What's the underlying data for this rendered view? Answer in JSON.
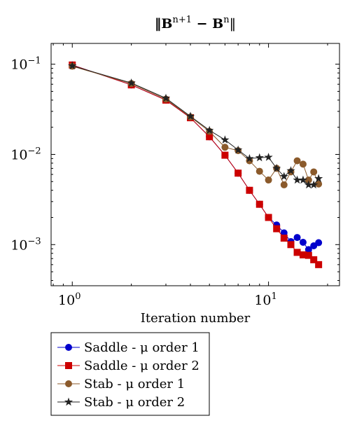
{
  "chart_data": {
    "type": "line",
    "title": "‖B^{n+1} − B^n‖",
    "xlabel": "Iteration number",
    "ylabel": "",
    "x_scale": "log",
    "y_scale": "log",
    "xlim": [
      0.78,
      23
    ],
    "ylim": [
      0.00035,
      0.17
    ],
    "x_ticks": [
      {
        "value": 1,
        "base": "10",
        "exp": "0"
      },
      {
        "value": 10,
        "base": "10",
        "exp": "1"
      }
    ],
    "y_ticks": [
      {
        "value": 0.1,
        "base": "10",
        "exp": "−1"
      },
      {
        "value": 0.01,
        "base": "10",
        "exp": "−2"
      },
      {
        "value": 0.001,
        "base": "10",
        "exp": "−3"
      }
    ],
    "grid": false,
    "legend_position": "below",
    "series": [
      {
        "name": "Saddle - μ order 1",
        "color": "#0000cc",
        "marker": "circle",
        "x": [
          1,
          2,
          3,
          4,
          5,
          6,
          7,
          8,
          9,
          10,
          11,
          12,
          13,
          14,
          15,
          16,
          17,
          18
        ],
        "y": [
          0.098,
          0.059,
          0.04,
          0.0255,
          0.0157,
          0.0098,
          0.0062,
          0.004,
          0.0028,
          0.002,
          0.00165,
          0.00135,
          0.00108,
          0.0012,
          0.00106,
          0.00088,
          0.00097,
          0.00105
        ]
      },
      {
        "name": "Saddle - μ order 2",
        "color": "#cc0000",
        "marker": "square",
        "x": [
          1,
          2,
          3,
          4,
          5,
          6,
          7,
          8,
          9,
          10,
          11,
          12,
          13,
          14,
          15,
          16,
          17,
          18
        ],
        "y": [
          0.098,
          0.059,
          0.04,
          0.0255,
          0.0157,
          0.0098,
          0.0062,
          0.004,
          0.0028,
          0.002,
          0.0015,
          0.00118,
          0.001,
          0.00082,
          0.00077,
          0.00076,
          0.00068,
          0.0006
        ]
      },
      {
        "name": "Stab - μ order 1",
        "color": "#8b5a2b",
        "marker": "circle",
        "x": [
          1,
          2,
          3,
          4,
          5,
          6,
          7,
          8,
          9,
          10,
          11,
          12,
          13,
          14,
          15,
          16,
          17,
          18
        ],
        "y": [
          0.095,
          0.061,
          0.041,
          0.026,
          0.018,
          0.012,
          0.011,
          0.0085,
          0.0065,
          0.0052,
          0.007,
          0.0046,
          0.0064,
          0.0085,
          0.0078,
          0.0052,
          0.0064,
          0.0047
        ]
      },
      {
        "name": "Stab - μ order 2",
        "color": "#222222",
        "marker": "star",
        "x": [
          1,
          2,
          3,
          4,
          5,
          6,
          7,
          8,
          9,
          10,
          11,
          12,
          13,
          14,
          15,
          16,
          17,
          18
        ],
        "y": [
          0.096,
          0.062,
          0.042,
          0.0265,
          0.0185,
          0.0145,
          0.0112,
          0.009,
          0.0092,
          0.0093,
          0.007,
          0.0057,
          0.0066,
          0.0052,
          0.0052,
          0.0046,
          0.0046,
          0.0054
        ]
      }
    ]
  }
}
